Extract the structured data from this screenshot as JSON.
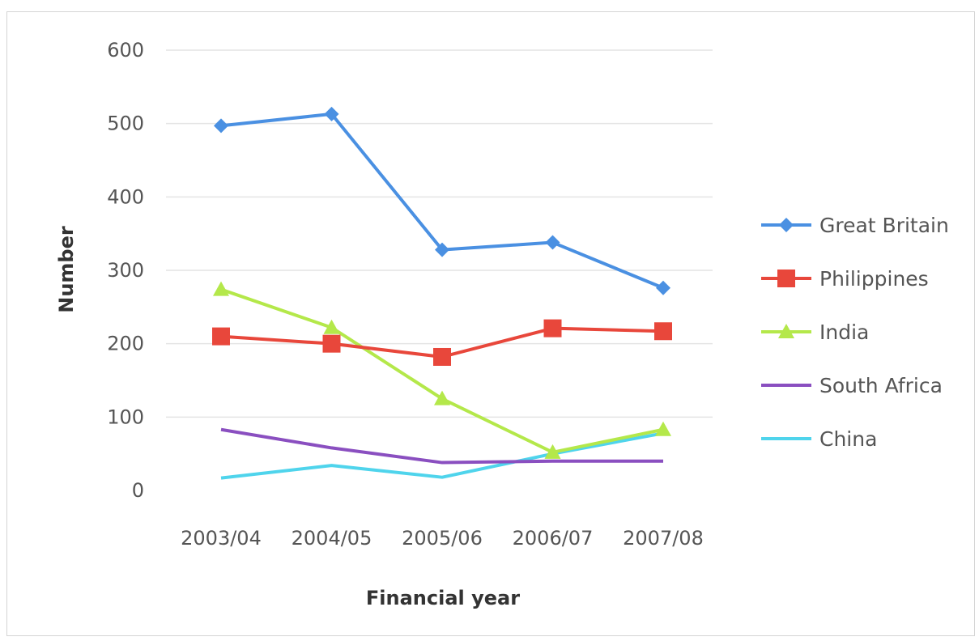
{
  "chart_data": {
    "type": "line",
    "title": "",
    "xlabel": "Financial year",
    "ylabel": "Number",
    "categories": [
      "2003/04",
      "2004/05",
      "2005/06",
      "2006/07",
      "2007/08"
    ],
    "ylim": [
      0,
      600
    ],
    "yticks": [
      0,
      100,
      200,
      300,
      400,
      500,
      600
    ],
    "grid": true,
    "legend": "right",
    "series": [
      {
        "name": "Great Britain",
        "color": "#4a90e2",
        "marker": "diamond",
        "values": [
          497,
          513,
          328,
          338,
          276
        ]
      },
      {
        "name": "Philippines",
        "color": "#e8473b",
        "marker": "square",
        "values": [
          210,
          200,
          182,
          221,
          217
        ]
      },
      {
        "name": "India",
        "color": "#b4e84a",
        "marker": "triangle",
        "values": [
          274,
          222,
          125,
          52,
          83
        ]
      },
      {
        "name": "South Africa",
        "color": "#8a4fc0",
        "marker": "none",
        "values": [
          83,
          58,
          38,
          40,
          40
        ]
      },
      {
        "name": "China",
        "color": "#4fd4ec",
        "marker": "none",
        "values": [
          17,
          34,
          18,
          50,
          78
        ]
      }
    ]
  }
}
